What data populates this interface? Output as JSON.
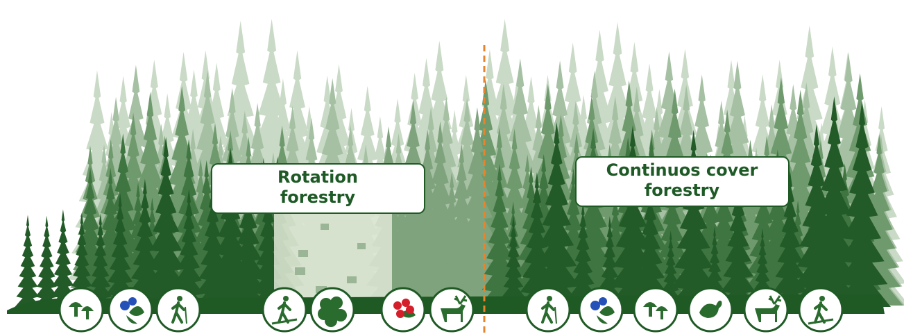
{
  "labels": {
    "rotation": {
      "lines": [
        "Rotation",
        "forestry"
      ]
    },
    "continuous": {
      "lines": [
        "Continuos cover",
        "forestry"
      ]
    }
  }
}
